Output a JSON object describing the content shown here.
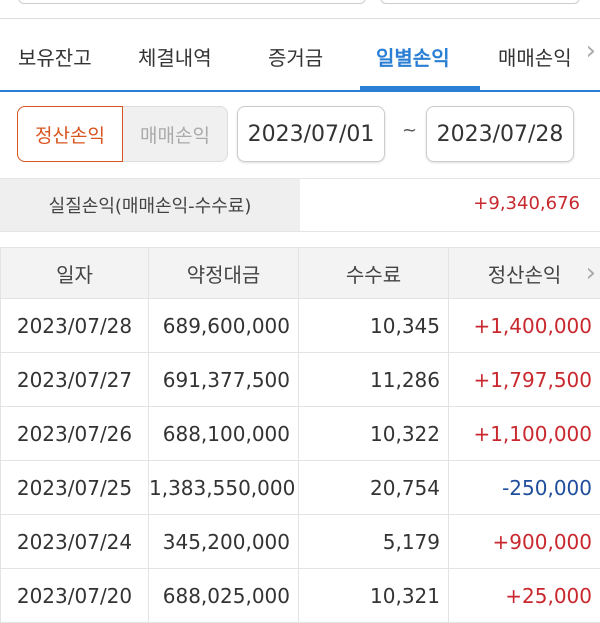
{
  "tabs": [
    {
      "label": "보유잔고"
    },
    {
      "label": "체결내역"
    },
    {
      "label": "증거금"
    },
    {
      "label": "일별손익",
      "active": true
    },
    {
      "label": "매매손익"
    }
  ],
  "filters": {
    "mode_options": [
      "정산손익",
      "매매손익"
    ],
    "selected_mode": "정산손익",
    "start_date": "2023/07/01",
    "separator": "~",
    "end_date": "2023/07/28"
  },
  "summary": {
    "label": "실질손익(매매손익-수수료)",
    "value": "+9,340,676"
  },
  "table": {
    "headers": [
      "일자",
      "약정대금",
      "수수료",
      "정산손익"
    ],
    "rows": [
      [
        "2023/07/28",
        "689,600,000",
        "10,345",
        "+1,400,000"
      ],
      [
        "2023/07/27",
        "691,377,500",
        "11,286",
        "+1,797,500"
      ],
      [
        "2023/07/26",
        "688,100,000",
        "10,322",
        "+1,100,000"
      ],
      [
        "2023/07/25",
        "1,383,550,000",
        "20,754",
        "-250,000"
      ],
      [
        "2023/07/24",
        "345,200,000",
        "5,179",
        "+900,000"
      ],
      [
        "2023/07/20",
        "688,025,000",
        "10,321",
        "+25,000"
      ]
    ]
  },
  "colors": {
    "accent": "#2a7fd4",
    "selected": "#d9541e",
    "positive": "#c8282e",
    "negative": "#1f4e9c"
  }
}
